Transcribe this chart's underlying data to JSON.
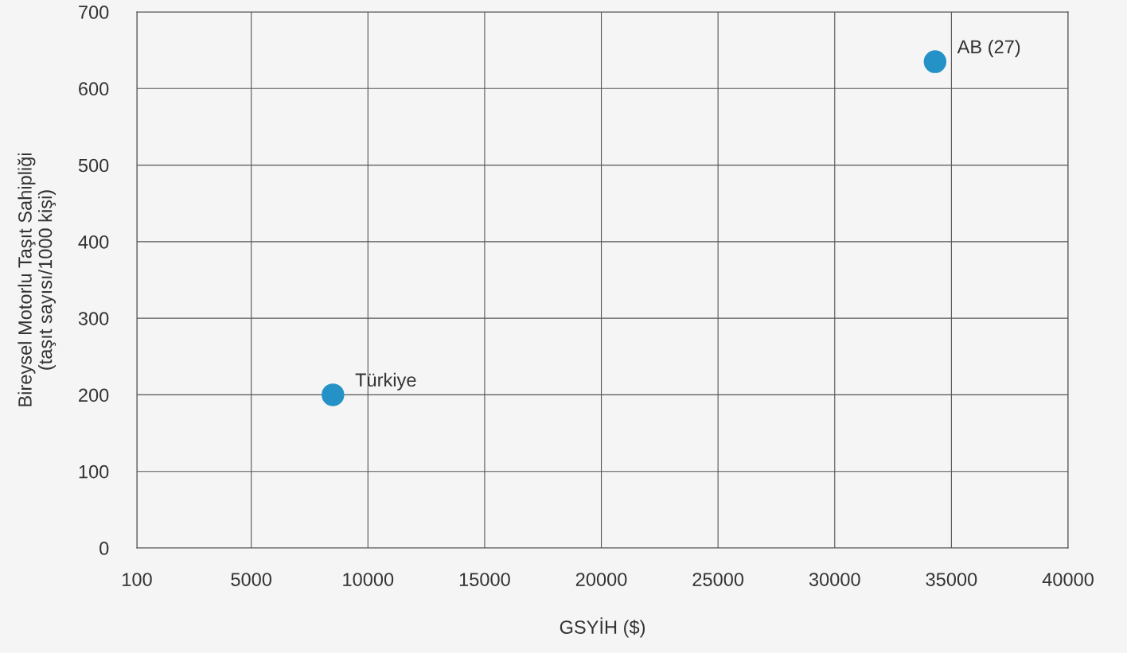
{
  "chart_data": {
    "type": "scatter",
    "xlabel": "GSYİH ($)",
    "ylabel": "Bireysel Motorlu Taşıt Sahipliği\n(taşıt sayısı/1000 kişi)",
    "x": [
      8500,
      34300
    ],
    "values": [
      200,
      635
    ],
    "color": "#2492c6",
    "annotations": [
      {
        "text": "Türkiye",
        "x": 8500,
        "y": 200
      },
      {
        "text": "AB (27)",
        "x": 34300,
        "y": 635
      }
    ],
    "xlim": [
      100,
      40000
    ],
    "ylim": [
      0,
      700
    ],
    "xticks": [
      100,
      5000,
      10000,
      15000,
      20000,
      25000,
      30000,
      35000,
      40000
    ],
    "yticks": [
      0,
      100,
      200,
      300,
      400,
      500,
      600,
      700
    ],
    "grid": true
  }
}
